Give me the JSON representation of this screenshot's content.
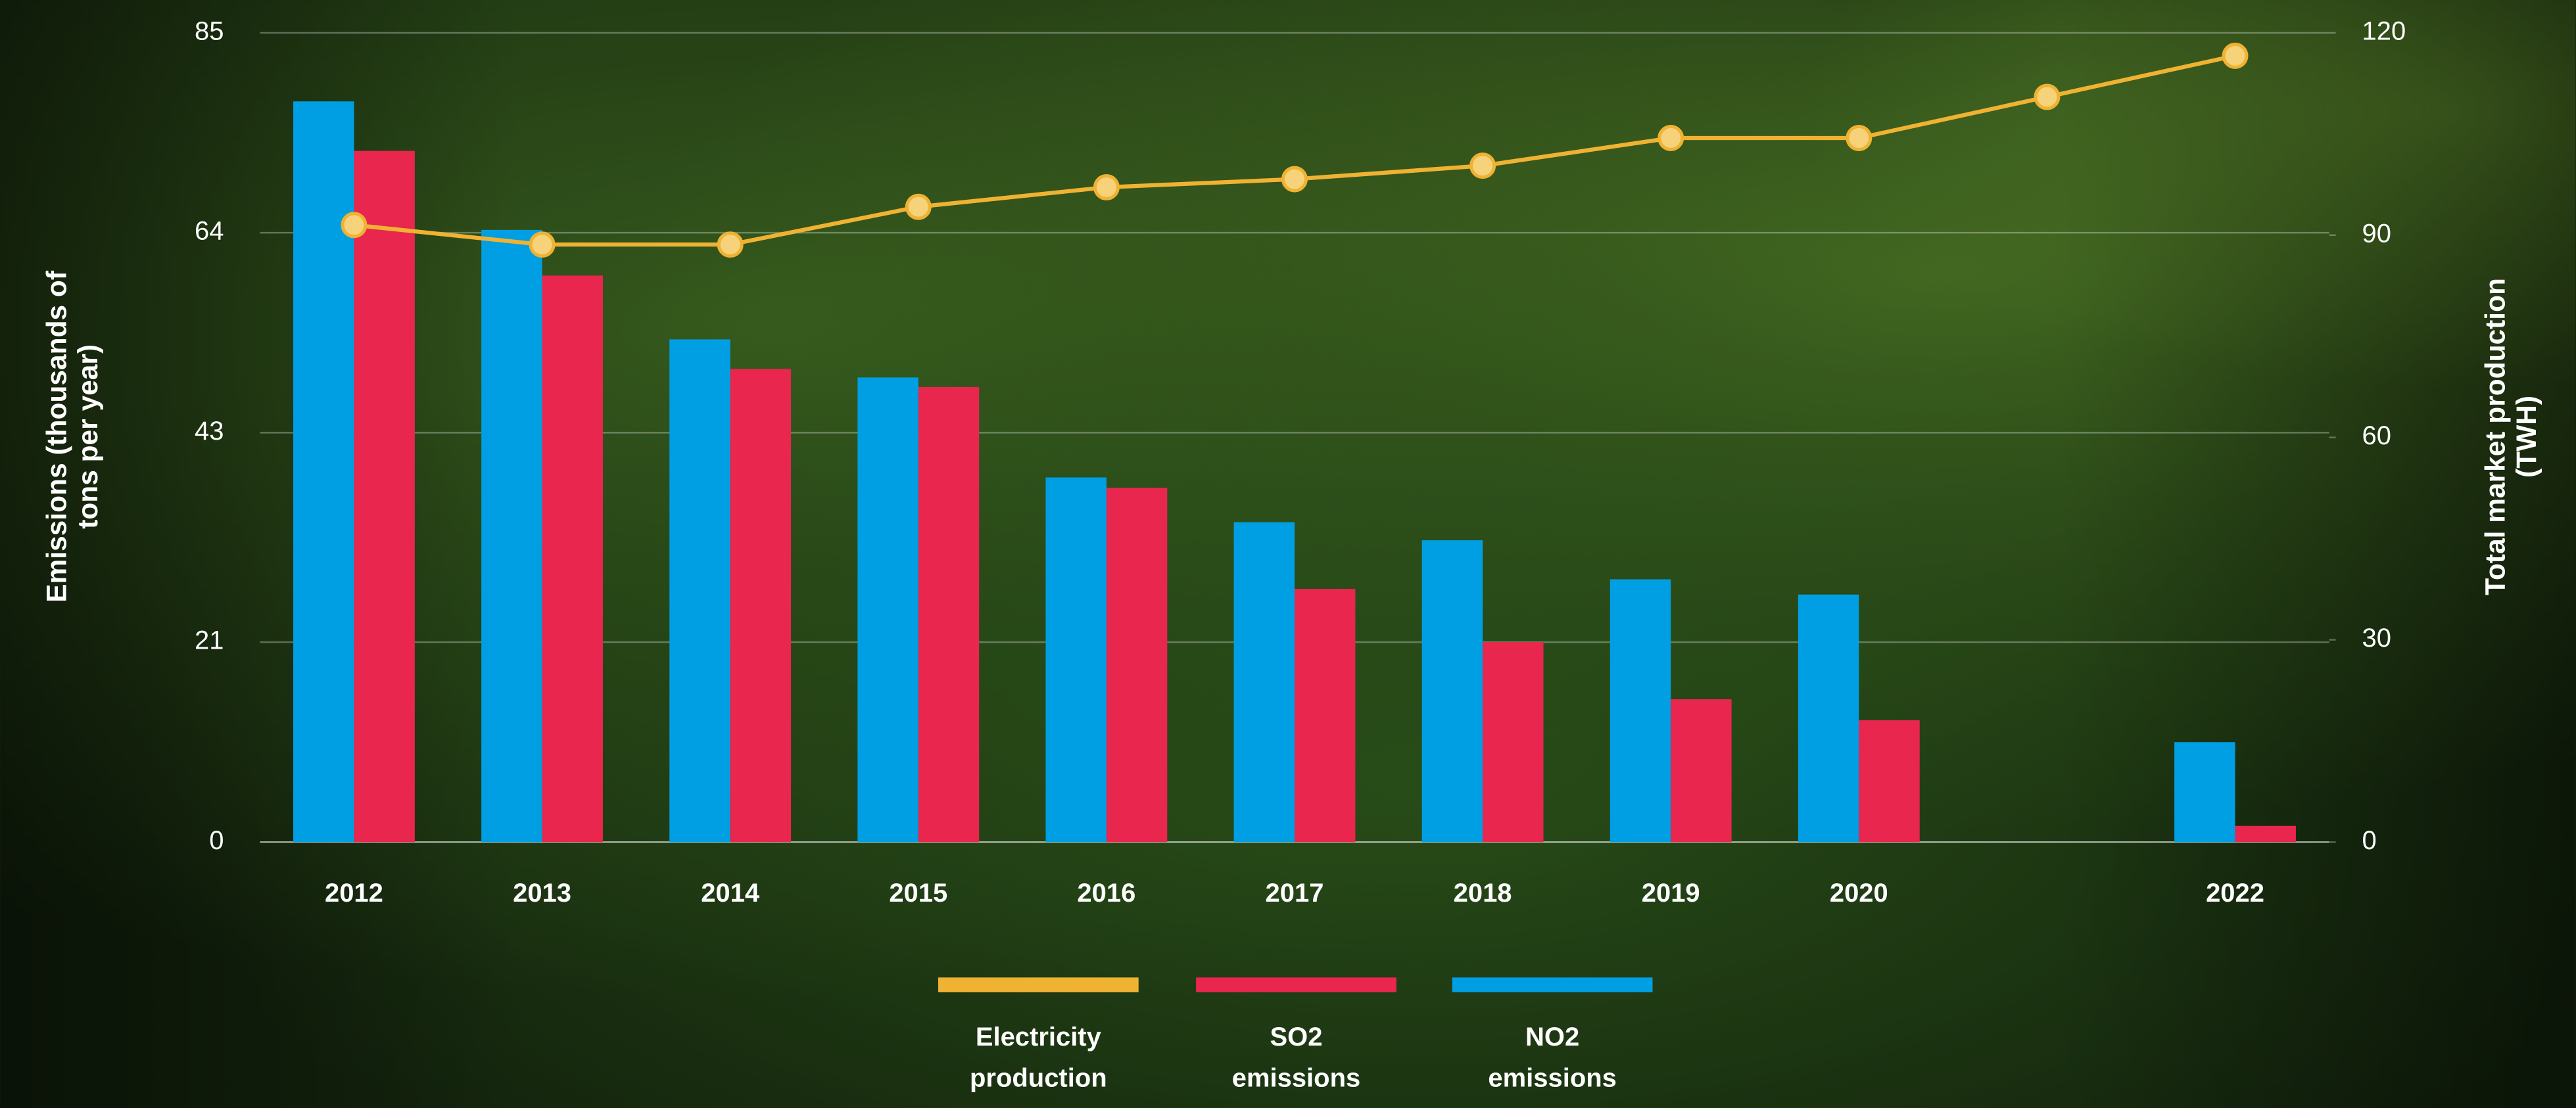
{
  "chart_data": {
    "type": "bar",
    "y_label": "Emissions (thousands of tons per year)",
    "y2_label": "Total market production (TWH)",
    "categories": [
      "2012",
      "2013",
      "2014",
      "2015",
      "2016",
      "2017",
      "2018",
      "2019",
      "2020",
      null,
      "2022"
    ],
    "ylim": [
      0,
      85
    ],
    "yticks": [
      0,
      21,
      43,
      64,
      85
    ],
    "y2lim": [
      0,
      120
    ],
    "y2ticks": [
      0,
      30,
      60,
      90,
      120
    ],
    "grid": true,
    "legend": "bottom",
    "series": [
      {
        "name": "Electricity production",
        "type": "line",
        "axis": "y2",
        "color": "#f0b232",
        "values": [
          91.5,
          88.6,
          88.6,
          94.2,
          97.1,
          98.3,
          100.3,
          104.4,
          104.4,
          110.5,
          116.6
        ]
      },
      {
        "name": "SO2 emissions",
        "type": "bar",
        "color": "#e8264e",
        "values": [
          72.6,
          59.5,
          49.7,
          47.8,
          37.2,
          26.6,
          21.0,
          15.0,
          12.8,
          null,
          1.7
        ]
      },
      {
        "name": "NO2 emissions",
        "type": "bar",
        "color": "#009fe3",
        "values": [
          77.8,
          64.3,
          52.8,
          48.8,
          38.3,
          33.6,
          31.7,
          27.6,
          26.0,
          null,
          10.5
        ]
      }
    ]
  }
}
